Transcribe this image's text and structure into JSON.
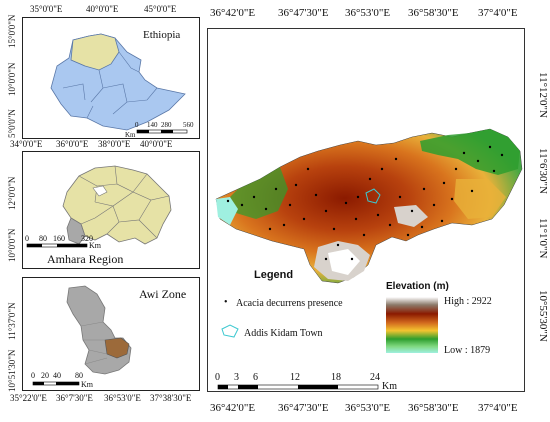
{
  "ethiopia": {
    "title": "Ethiopia",
    "top_ticks": [
      "35°0'0\"E",
      "40°0'0\"E",
      "45°0'0\"E"
    ],
    "left_ticks": [
      "15°0'0\"N",
      "10°0'0\"N",
      "5°0'0\"N"
    ],
    "scale_labels": [
      "0",
      "140",
      "280",
      "560"
    ],
    "scale_unit": "Km"
  },
  "amhara": {
    "title": "Amhara Region",
    "top_ticks": [
      "34°0'0\"E",
      "36°0'0\"E",
      "38°0'0\"E",
      "40°0'0\"E"
    ],
    "left_ticks": [
      "12°0'0\"N",
      "10°0'0\"N"
    ],
    "scale_labels": [
      "0",
      "80",
      "160",
      "320"
    ],
    "scale_unit": "Km"
  },
  "awi": {
    "title": "Awi Zone",
    "bottom_ticks": [
      "35°22'0\"E",
      "36°7'30\"E",
      "36°53'0\"E",
      "37°38'30\"E"
    ],
    "left_ticks": [
      "11°37'0\"N",
      "10°51'30\"N"
    ],
    "scale_labels": [
      "0",
      "20",
      "40",
      "80"
    ],
    "scale_unit": "Km"
  },
  "main_map": {
    "top_ticks": [
      "36°42'0\"E",
      "36°47'30\"E",
      "36°53'0\"E",
      "36°58'30\"E",
      "37°4'0\"E"
    ],
    "bottom_ticks": [
      "36°42'0\"E",
      "36°47'30\"E",
      "36°53'0\"E",
      "36°58'30\"E",
      "37°4'0\"E"
    ],
    "right_ticks": [
      "11°12'0\"N",
      "11°6'30\"N",
      "11°1'0\"N",
      "10°55'30\"N"
    ],
    "scale_labels": [
      "0",
      "3",
      "6",
      "12",
      "18",
      "24"
    ],
    "scale_unit": "Km"
  },
  "legend": {
    "title": "Legend",
    "presence_label": "Acacia decurrens presence",
    "town_label": "Addis Kidam Town",
    "elevation_title": "Elevation (m)",
    "high_label": "High : 2922",
    "low_label": "Low : 1879"
  },
  "colors": {
    "ethiopia_fill": "#aac8f0",
    "amhara_fill": "#e6e2a6",
    "awi_fill": "#a8a8a8",
    "highlight_fill": "#9c6a3a",
    "town_outline": "#3cc8d0"
  }
}
